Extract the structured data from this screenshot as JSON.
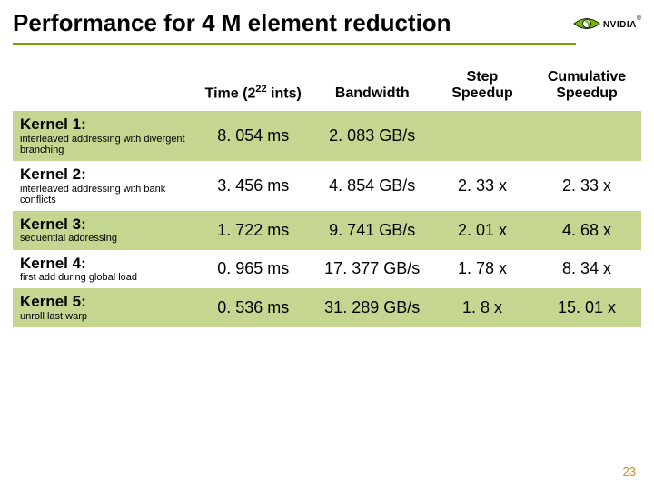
{
  "title": "Performance for 4 M element reduction",
  "logo_text": "NVIDIA",
  "columns": {
    "c0": "",
    "c1_pre": "Time (2",
    "c1_sup": "22",
    "c1_post": " ints)",
    "c2": "Bandwidth",
    "c3": "Step Speedup",
    "c4": "Cumulative Speedup"
  },
  "rows": [
    {
      "name": "Kernel 1:",
      "desc": "interleaved addressing with divergent branching",
      "time": "8. 054 ms",
      "bw": "2. 083 GB/s",
      "step": "",
      "cum": "",
      "row_class": "row-green"
    },
    {
      "name": "Kernel 2:",
      "desc": "interleaved addressing with bank conflicts",
      "time": "3. 456 ms",
      "bw": "4. 854 GB/s",
      "step": "2. 33 x",
      "cum": "2. 33 x",
      "row_class": "row-white"
    },
    {
      "name": "Kernel 3:",
      "desc": "sequential addressing",
      "time": "1. 722 ms",
      "bw": "9. 741 GB/s",
      "step": "2. 01 x",
      "cum": "4. 68 x",
      "row_class": "row-green"
    },
    {
      "name": "Kernel 4:",
      "desc": "first add during global load",
      "time": "0. 965 ms",
      "bw": "17. 377 GB/s",
      "step": "1. 78 x",
      "cum": "8. 34 x",
      "row_class": "row-white"
    },
    {
      "name": "Kernel 5:",
      "desc": "unroll last warp",
      "time": "0. 536 ms",
      "bw": "31. 289 GB/s",
      "step": "1. 8 x",
      "cum": "15. 01 x",
      "row_class": "row-green"
    }
  ],
  "page_number": "23",
  "colors": {
    "accent": "#72a300",
    "row_green": "#c4d690",
    "page_num": "#d48b2a"
  }
}
